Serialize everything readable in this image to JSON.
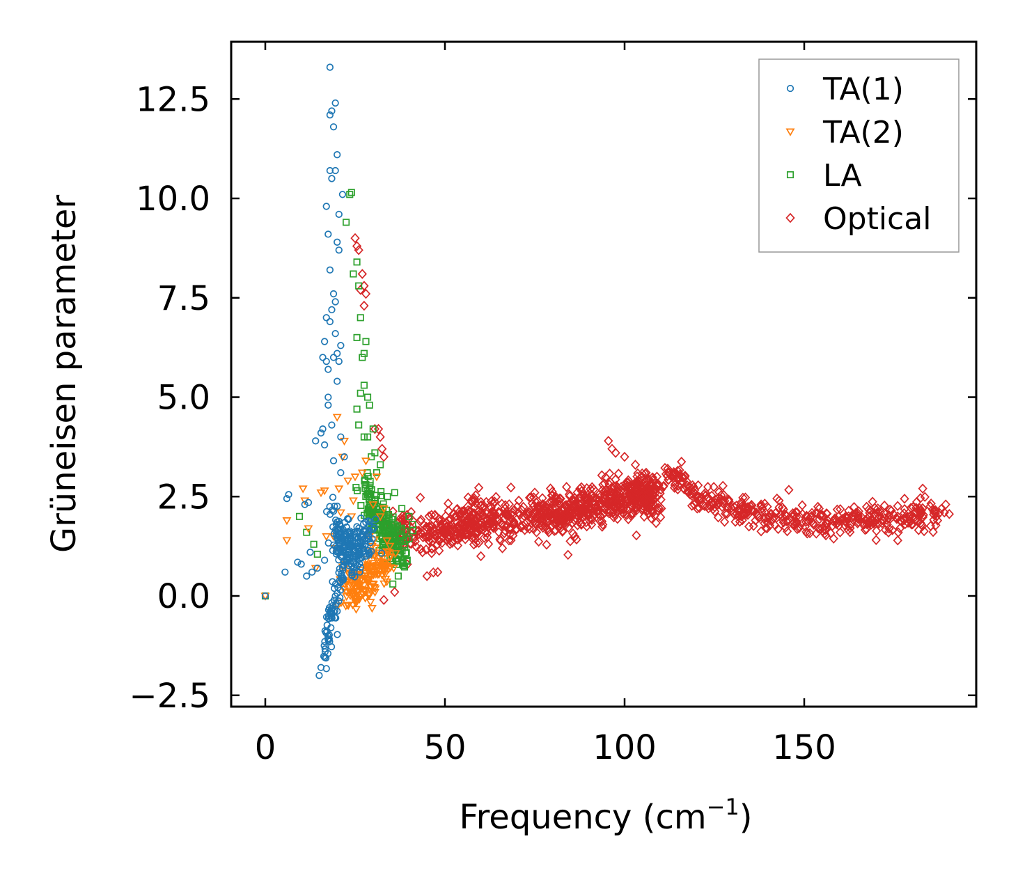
{
  "chart_data": {
    "type": "scatter",
    "xlabel": "Frequency (cm",
    "xlabel_sup": "−1",
    "xlabel_close": ")",
    "ylabel": "Grüneisen parameter",
    "xlim": [
      -10,
      197
    ],
    "ylim": [
      -2.8,
      14
    ],
    "x_ticks": [
      0,
      50,
      100,
      150
    ],
    "x_tick_labels": [
      "0",
      "50",
      "100",
      "150"
    ],
    "y_ticks": [
      -2.5,
      0.0,
      2.5,
      5.0,
      7.5,
      10.0,
      12.5
    ],
    "y_tick_labels": [
      "−2.5",
      "0.0",
      "2.5",
      "5.0",
      "7.5",
      "10.0",
      "12.5"
    ],
    "legend_position": "top-right",
    "series": [
      {
        "name": "TA(1)",
        "marker": "circle",
        "color": "#1f77b4",
        "points": [
          [
            0,
            0
          ],
          [
            5.5,
            0.6
          ],
          [
            6,
            2.45
          ],
          [
            6.5,
            2.55
          ],
          [
            9,
            0.85
          ],
          [
            10,
            0.8
          ],
          [
            11,
            2.3
          ],
          [
            11.5,
            0.5
          ],
          [
            12,
            2.35
          ],
          [
            12.5,
            1.1
          ],
          [
            13,
            0.6
          ],
          [
            14,
            3.9
          ],
          [
            14.5,
            0.7
          ],
          [
            15,
            -2.0
          ],
          [
            15.5,
            -1.8
          ],
          [
            16,
            4.2
          ],
          [
            16.5,
            6.4
          ],
          [
            16.5,
            0.9
          ],
          [
            17,
            7.0
          ],
          [
            17,
            9.8
          ],
          [
            17.5,
            9.1
          ],
          [
            17.5,
            5.7
          ],
          [
            18,
            13.3
          ],
          [
            18,
            12.1
          ],
          [
            18,
            10.7
          ],
          [
            18,
            8.2
          ],
          [
            18.5,
            10.5
          ],
          [
            18.5,
            12.2
          ],
          [
            19,
            11.8
          ],
          [
            19,
            7.6
          ],
          [
            19,
            6.0
          ],
          [
            19.5,
            10.7
          ],
          [
            19.5,
            12.4
          ],
          [
            20,
            11.1
          ],
          [
            20,
            8.9
          ],
          [
            20,
            5.4
          ],
          [
            20.5,
            9.6
          ],
          [
            20.5,
            8.7
          ],
          [
            21,
            4.0
          ],
          [
            21,
            3.1
          ],
          [
            21.5,
            10.1
          ],
          [
            22,
            3.5
          ],
          [
            18.5,
            7.2
          ],
          [
            19.5,
            6.6
          ],
          [
            17.5,
            4.8
          ],
          [
            18.5,
            4.3
          ],
          [
            16.5,
            3.8
          ],
          [
            20,
            6.1
          ],
          [
            19,
            3.4
          ],
          [
            18,
            6.9
          ],
          [
            16,
            6.0
          ],
          [
            17,
            5.9
          ],
          [
            19.5,
            7.4
          ],
          [
            20.5,
            5.9
          ],
          [
            21,
            6.3
          ],
          [
            15.5,
            4.1
          ],
          [
            17.5,
            5.0
          ]
        ]
      },
      {
        "name": "TA(2)",
        "marker": "triangle",
        "color": "#ff7f0e",
        "points": [
          [
            0,
            0
          ],
          [
            6,
            1.9
          ],
          [
            6,
            1.4
          ],
          [
            10.5,
            2.7
          ],
          [
            11,
            2.4
          ],
          [
            12,
            1.7
          ],
          [
            14,
            0.7
          ],
          [
            15.5,
            2.6
          ],
          [
            16.5,
            2.65
          ],
          [
            17,
            1.5
          ],
          [
            19,
            1.5
          ],
          [
            19.5,
            1.2
          ],
          [
            20,
            4.5
          ],
          [
            20.5,
            2.7
          ],
          [
            21,
            2.1
          ],
          [
            22,
            3.9
          ],
          [
            23,
            2.9
          ],
          [
            24,
            2.0
          ],
          [
            25,
            3.0
          ],
          [
            27,
            3.1
          ],
          [
            28,
            3.4
          ],
          [
            29,
            1.5
          ],
          [
            30,
            2.3
          ],
          [
            31,
            3.0
          ],
          [
            33,
            2.2
          ],
          [
            32,
            2.0
          ],
          [
            21.5,
            3.5
          ],
          [
            24.5,
            2.4
          ]
        ]
      },
      {
        "name": "LA",
        "marker": "square",
        "color": "#2ca02c",
        "points": [
          [
            0,
            0
          ],
          [
            9.5,
            2.0
          ],
          [
            11.5,
            1.6
          ],
          [
            13.5,
            1.3
          ],
          [
            14.5,
            1.05
          ],
          [
            23.5,
            10.1
          ],
          [
            24,
            10.15
          ],
          [
            22.5,
            9.4
          ],
          [
            24.5,
            8.1
          ],
          [
            25.5,
            8.4
          ],
          [
            26,
            7.8
          ],
          [
            26.5,
            7.0
          ],
          [
            25.5,
            6.5
          ],
          [
            27,
            6.0
          ],
          [
            28,
            6.4
          ],
          [
            27.5,
            6.1
          ],
          [
            26.5,
            5.1
          ],
          [
            27.5,
            5.3
          ],
          [
            28.5,
            5.0
          ],
          [
            25.5,
            4.7
          ],
          [
            26,
            4.3
          ],
          [
            27.5,
            4.0
          ],
          [
            28.5,
            4.0
          ],
          [
            29,
            4.8
          ],
          [
            30.5,
            3.6
          ],
          [
            30,
            4.2
          ],
          [
            31,
            3.1
          ],
          [
            32,
            3.3
          ],
          [
            34,
            2.5
          ],
          [
            36,
            2.6
          ],
          [
            38,
            2.2
          ],
          [
            40,
            2.0
          ],
          [
            41,
            1.8
          ],
          [
            39.5,
            0.9
          ],
          [
            35.5,
            0.3
          ],
          [
            37,
            0.5
          ],
          [
            28,
            2.8
          ],
          [
            29.5,
            3.5
          ]
        ]
      },
      {
        "name": "Optical",
        "marker": "diamond",
        "color": "#d62728",
        "points": [
          [
            25,
            9.0
          ],
          [
            25.5,
            8.8
          ],
          [
            26,
            8.7
          ],
          [
            26.5,
            7.7
          ],
          [
            27,
            8.1
          ],
          [
            27.5,
            7.8
          ],
          [
            28,
            7.6
          ],
          [
            27.5,
            7.3
          ],
          [
            30.5,
            4.2
          ],
          [
            31.5,
            4.2
          ],
          [
            32,
            4.0
          ],
          [
            33,
            3.5
          ],
          [
            32.5,
            3.7
          ],
          [
            33,
            -0.1
          ],
          [
            36,
            0.1
          ],
          [
            45,
            0.5
          ],
          [
            48,
            0.6
          ],
          [
            60,
            1.0
          ],
          [
            66,
            1.2
          ],
          [
            95.5,
            3.9
          ],
          [
            96.5,
            3.7
          ],
          [
            97.5,
            3.6
          ],
          [
            100,
            3.5
          ],
          [
            103,
            3.3
          ],
          [
            106,
            3.1
          ],
          [
            109,
            3.0
          ],
          [
            112,
            3.2
          ],
          [
            115,
            3.0
          ],
          [
            120,
            2.5
          ],
          [
            126,
            2.3
          ],
          [
            132,
            2.1
          ],
          [
            138,
            2.3
          ],
          [
            143,
            2.4
          ],
          [
            148,
            2.1
          ],
          [
            152,
            2.0
          ],
          [
            160,
            1.6
          ],
          [
            165,
            2.0
          ],
          [
            170,
            1.9
          ],
          [
            176,
            2.0
          ],
          [
            182,
            2.0
          ],
          [
            186,
            2.05
          ],
          [
            189,
            2.1
          ]
        ]
      }
    ],
    "clouds": [
      {
        "series": "TA(1)",
        "center": [
          [
            19,
            1.7
          ],
          [
            22,
            1.3
          ],
          [
            25,
            1.2
          ],
          [
            29,
            1.4
          ]
        ],
        "spread_x": 3.0,
        "spread_y": 0.55,
        "count": 210
      },
      {
        "series": "TA(1)",
        "center": [
          [
            16,
            -1.7
          ],
          [
            17.5,
            -0.8
          ],
          [
            19.5,
            -0.1
          ],
          [
            21.5,
            0.5
          ]
        ],
        "spread_x": 0.9,
        "spread_y": 0.35,
        "count": 70
      },
      {
        "series": "TA(2)",
        "center": [
          [
            22,
            0.3
          ],
          [
            26,
            0.1
          ],
          [
            30,
            0.7
          ],
          [
            34,
            1.0
          ]
        ],
        "spread_x": 2.5,
        "spread_y": 0.45,
        "count": 170
      },
      {
        "series": "LA",
        "center": [
          [
            28,
            2.5
          ],
          [
            31,
            2.0
          ],
          [
            35,
            1.4
          ],
          [
            39,
            1.2
          ]
        ],
        "spread_x": 2.2,
        "spread_y": 0.5,
        "count": 190
      },
      {
        "series": "Optical",
        "center": [
          [
            36,
            1.6
          ],
          [
            50,
            1.7
          ],
          [
            60,
            1.9
          ],
          [
            75,
            2.0
          ],
          [
            85,
            2.1
          ],
          [
            95,
            2.4
          ],
          [
            104,
            2.5
          ],
          [
            108,
            2.5
          ]
        ],
        "spread_x": 3.5,
        "spread_y": 0.45,
        "count": 950
      },
      {
        "series": "Optical",
        "center": [
          [
            110,
            3.1
          ],
          [
            120,
            2.6
          ],
          [
            130,
            2.2
          ],
          [
            140,
            2.0
          ],
          [
            150,
            1.9
          ],
          [
            160,
            1.9
          ],
          [
            170,
            1.95
          ],
          [
            180,
            2.0
          ],
          [
            188,
            2.05
          ]
        ],
        "spread_x": 3.0,
        "spread_y": 0.3,
        "count": 420
      }
    ]
  }
}
